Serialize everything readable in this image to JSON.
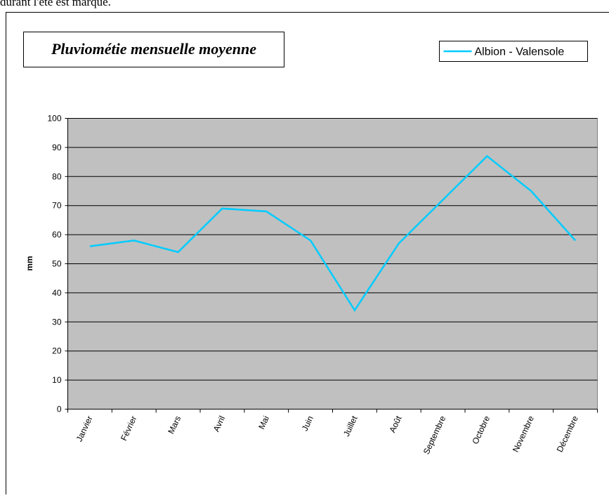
{
  "caption": "durant l'été est marqué.",
  "chart_data": {
    "type": "line",
    "title": "Pluviométie mensuelle moyenne",
    "y_label": "mm",
    "categories": [
      "Janvier",
      "Février",
      "Mars",
      "Avril",
      "Mai",
      "Juin",
      "Juillet",
      "Août",
      "Septembre",
      "Octobre",
      "Novembre",
      "Décembre"
    ],
    "series": [
      {
        "name": "Albion - Valensole",
        "color": "#00ccff",
        "values": [
          56,
          58,
          54,
          69,
          68,
          58,
          34,
          57,
          72,
          87,
          75,
          58
        ]
      }
    ],
    "ylim": [
      0,
      100
    ],
    "yticks": [
      0,
      10,
      20,
      30,
      40,
      50,
      60,
      70,
      80,
      90,
      100
    ],
    "grid": true,
    "legend": "top-right"
  }
}
